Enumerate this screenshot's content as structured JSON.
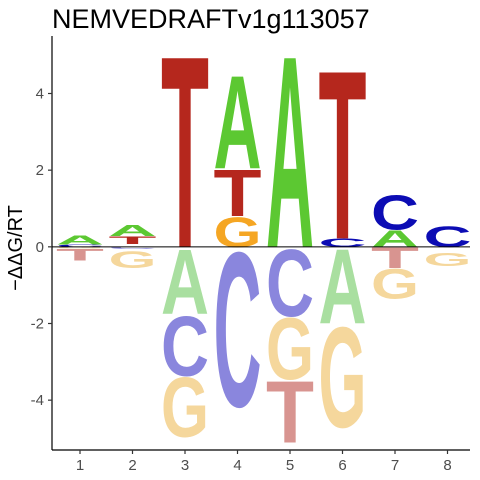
{
  "chart_data": {
    "type": "sequence-logo",
    "title": "NEMVEDRAFTv1g113057",
    "ylabel": "−ΔΔG/RT",
    "xlabel": "",
    "ylim": [
      -5.3,
      5.5
    ],
    "y_ticks": [
      -4,
      -2,
      0,
      2,
      4
    ],
    "positions": [
      1,
      2,
      3,
      4,
      5,
      6,
      7,
      8
    ],
    "grid": false,
    "legend": "none",
    "colors": {
      "A_pos": "#5cc832",
      "C_pos": "#0c0cb4",
      "G_pos": "#f5a623",
      "T_pos": "#b5271d",
      "A_neg": "#a9dfa0",
      "C_neg": "#8a86dd",
      "G_neg": "#f5d79c",
      "T_neg": "#d89490"
    },
    "columns": [
      {
        "position": 1,
        "letters": [
          {
            "base": "A",
            "y0": 0.06,
            "y1": 0.3
          },
          {
            "base": "C",
            "y0": 0.0,
            "y1": 0.06
          },
          {
            "base": "G",
            "y0": -0.04,
            "y1": 0.0
          },
          {
            "base": "T",
            "y0": -0.35,
            "y1": -0.04
          }
        ]
      },
      {
        "position": 2,
        "letters": [
          {
            "base": "A",
            "y0": 0.28,
            "y1": 0.58
          },
          {
            "base": "T",
            "y0": 0.07,
            "y1": 0.28
          },
          {
            "base": "C",
            "y0": -0.06,
            "y1": 0.0
          },
          {
            "base": "G",
            "y0": -0.55,
            "y1": -0.1
          }
        ]
      },
      {
        "position": 3,
        "letters": [
          {
            "base": "T",
            "y0": 0.0,
            "y1": 5.15
          },
          {
            "base": "A",
            "y0": -1.75,
            "y1": 0.0
          },
          {
            "base": "C",
            "y0": -3.35,
            "y1": -1.75
          },
          {
            "base": "G",
            "y0": -4.95,
            "y1": -3.35
          }
        ]
      },
      {
        "position": 4,
        "letters": [
          {
            "base": "A",
            "y0": 2.05,
            "y1": 4.55
          },
          {
            "base": "T",
            "y0": 0.8,
            "y1": 2.05
          },
          {
            "base": "G",
            "y0": 0.0,
            "y1": 0.8
          },
          {
            "base": "C",
            "y0": -4.15,
            "y1": 0.0
          }
        ]
      },
      {
        "position": 5,
        "letters": [
          {
            "base": "A",
            "y0": 0.0,
            "y1": 5.15
          },
          {
            "base": "C",
            "y0": -1.8,
            "y1": 0.0
          },
          {
            "base": "G",
            "y0": -3.45,
            "y1": -1.8
          },
          {
            "base": "T",
            "y0": -5.1,
            "y1": -3.45
          }
        ]
      },
      {
        "position": 6,
        "letters": [
          {
            "base": "T",
            "y0": 0.22,
            "y1": 4.75
          },
          {
            "base": "C",
            "y0": 0.0,
            "y1": 0.22
          },
          {
            "base": "A",
            "y0": -2.0,
            "y1": 0.0
          },
          {
            "base": "G",
            "y0": -4.7,
            "y1": -2.0
          }
        ]
      },
      {
        "position": 7,
        "letters": [
          {
            "base": "C",
            "y0": 0.45,
            "y1": 1.38
          },
          {
            "base": "A",
            "y0": 0.0,
            "y1": 0.45
          },
          {
            "base": "T",
            "y0": -0.55,
            "y1": 0.0
          },
          {
            "base": "G",
            "y0": -1.35,
            "y1": -0.55
          }
        ]
      },
      {
        "position": 8,
        "letters": [
          {
            "base": "C",
            "y0": 0.0,
            "y1": 0.55
          },
          {
            "base": "G",
            "y0": -0.5,
            "y1": -0.15
          }
        ]
      }
    ]
  }
}
